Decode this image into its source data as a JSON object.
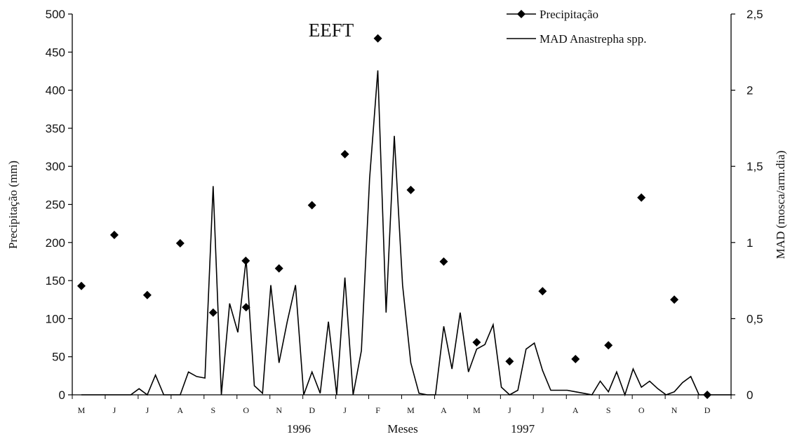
{
  "chart_data": {
    "type": "line",
    "title": "EEFT",
    "xlabel": "Meses",
    "ylabel_left": "Precipitação (mm)",
    "ylabel_right": "MAD (mosca/arm.dia)",
    "ylim_left": [
      0,
      500
    ],
    "ylim_right": [
      0,
      2.5
    ],
    "left_ticks": [
      "0",
      "50",
      "100",
      "150",
      "200",
      "250",
      "300",
      "350",
      "400",
      "450",
      "500"
    ],
    "right_ticks": [
      "0",
      "0,5",
      "1",
      "1,5",
      "2",
      "2,5"
    ],
    "month_labels": [
      "M",
      "J",
      "J",
      "A",
      "S",
      "O",
      "N",
      "D",
      "J",
      "F",
      "M",
      "A",
      "M",
      "J",
      "J",
      "A",
      "S",
      "O",
      "N",
      "D"
    ],
    "year_labels": [
      {
        "text": "1996",
        "month_index": 6.6
      },
      {
        "text": "1997",
        "month_index": 13.4
      }
    ],
    "legend_position": "top-right",
    "series": [
      {
        "name": "Precipitação",
        "style": "markers",
        "marker": "diamond",
        "axis": "left",
        "month_index": [
          0,
          1,
          2,
          3,
          4,
          4.99,
          5,
          6,
          7,
          8,
          9,
          10,
          11,
          12,
          13,
          14,
          15,
          16,
          17,
          18,
          19
        ],
        "values": [
          143,
          210,
          131,
          199,
          108,
          176,
          115,
          166,
          249,
          316,
          468,
          269,
          175,
          69,
          44,
          136,
          47,
          65,
          259,
          125,
          0
        ]
      },
      {
        "name": "MAD Anastrepha spp.",
        "style": "line",
        "axis": "right",
        "month_index": [
          0,
          0.25,
          0.5,
          0.75,
          1,
          1.25,
          1.5,
          1.75,
          2,
          2.25,
          2.5,
          2.75,
          3,
          3.25,
          3.5,
          3.75,
          4,
          4.25,
          4.5,
          4.75,
          5,
          5.25,
          5.5,
          5.75,
          6,
          6.25,
          6.5,
          6.75,
          7,
          7.25,
          7.5,
          7.75,
          8,
          8.25,
          8.5,
          8.75,
          9,
          9.25,
          9.5,
          9.75,
          10,
          10.25,
          10.5,
          10.75,
          11,
          11.25,
          11.5,
          11.75,
          12,
          12.25,
          12.5,
          12.75,
          13,
          13.25,
          13.5,
          13.75,
          14,
          14.25,
          14.5,
          14.75,
          15,
          15.25,
          15.5,
          15.75,
          16,
          16.25,
          16.5,
          16.75,
          17,
          17.25,
          17.5,
          17.75,
          18,
          18.25,
          18.5,
          18.75,
          19,
          19.25,
          19.5,
          19.75
        ],
        "values": [
          0,
          0,
          0,
          0,
          0,
          0,
          0,
          0.04,
          0,
          0.13,
          0,
          0,
          0,
          0.15,
          0.12,
          0.11,
          1.37,
          0,
          0.6,
          0.41,
          0.89,
          0.06,
          0.01,
          0.72,
          0.21,
          0.48,
          0.72,
          0,
          0.15,
          0.01,
          0.48,
          0,
          0.77,
          0,
          0.29,
          1.42,
          2.13,
          0.54,
          1.7,
          0.72,
          0.21,
          0.01,
          0,
          0,
          0.45,
          0.17,
          0.54,
          0.15,
          0.3,
          0.33,
          0.46,
          0.05,
          0,
          0.03,
          0.3,
          0.34,
          0.16,
          0.03,
          0.03,
          0.03,
          0.02,
          0.01,
          0,
          0.09,
          0.02,
          0.15,
          0,
          0.17,
          0.05,
          0.09,
          0.04,
          0,
          0.02,
          0.08,
          0.12,
          0,
          0,
          0,
          0,
          0
        ]
      }
    ]
  }
}
